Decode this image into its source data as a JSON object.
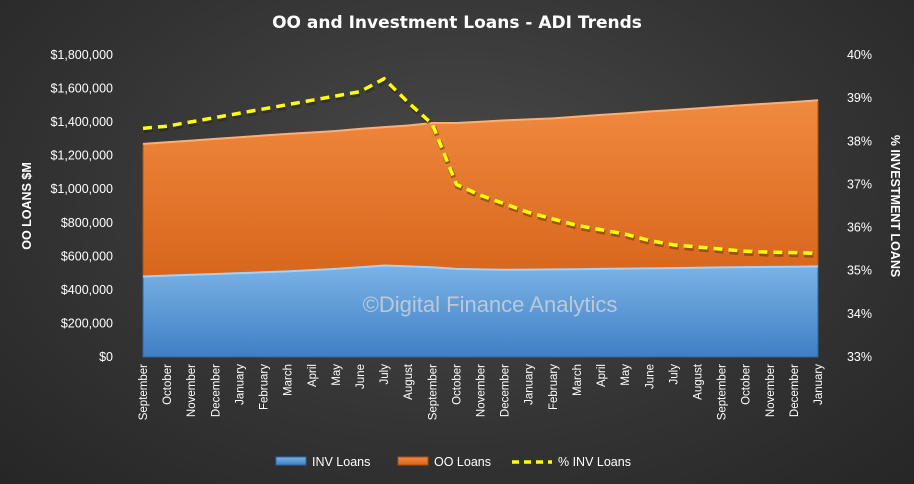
{
  "chart_data": {
    "type": "area",
    "title": "OO and Investment  Loans  - ADI Trends",
    "ylabel": "OO LOANS $M",
    "y2label": "% INVESTMENT LOANS",
    "ylim": [
      0,
      1800000
    ],
    "y2lim": [
      33,
      40
    ],
    "yticks": [
      "$0",
      "$200,000",
      "$400,000",
      "$600,000",
      "$800,000",
      "$1,000,000",
      "$1,200,000",
      "$1,400,000",
      "$1,600,000",
      "$1,800,000"
    ],
    "y2ticks": [
      "33%",
      "34%",
      "35%",
      "36%",
      "37%",
      "38%",
      "39%",
      "40%"
    ],
    "categories": [
      "September",
      "October",
      "November",
      "December",
      "January",
      "February",
      "March",
      "April",
      "May",
      "June",
      "July",
      "August",
      "September",
      "October",
      "November",
      "December",
      "January",
      "February",
      "March",
      "April",
      "May",
      "June",
      "July",
      "August",
      "September",
      "October",
      "November",
      "December",
      "January"
    ],
    "series": [
      {
        "name": "INV Loans",
        "kind": "area",
        "color": "#5b9bd5",
        "values": [
          480000,
          485000,
          490000,
          495000,
          500000,
          505000,
          510000,
          518000,
          525000,
          535000,
          545000,
          540000,
          535000,
          525000,
          522000,
          520000,
          521000,
          522000,
          523000,
          525000,
          527000,
          528000,
          530000,
          532000,
          534000,
          536000,
          537000,
          538000,
          540000
        ]
      },
      {
        "name": "OO Loans",
        "kind": "area",
        "color": "#ed7d31",
        "values": [
          790000,
          795000,
          800000,
          805000,
          810000,
          815000,
          820000,
          820000,
          822000,
          825000,
          825000,
          840000,
          860000,
          870000,
          880000,
          890000,
          895000,
          900000,
          910000,
          918000,
          925000,
          935000,
          942000,
          950000,
          958000,
          966000,
          974000,
          982000,
          990000
        ]
      },
      {
        "name": "% INV Loans",
        "kind": "line",
        "axis": "right",
        "color": "#ffff00",
        "values": [
          38.3,
          38.35,
          38.45,
          38.55,
          38.65,
          38.75,
          38.85,
          38.95,
          39.05,
          39.15,
          39.45,
          38.9,
          38.4,
          37.0,
          36.75,
          36.55,
          36.35,
          36.2,
          36.05,
          35.95,
          35.85,
          35.7,
          35.6,
          35.55,
          35.5,
          35.45,
          35.43,
          35.42,
          35.4
        ]
      }
    ],
    "grid": false,
    "legend": "bottom",
    "watermark": "©Digital Finance Analytics"
  }
}
